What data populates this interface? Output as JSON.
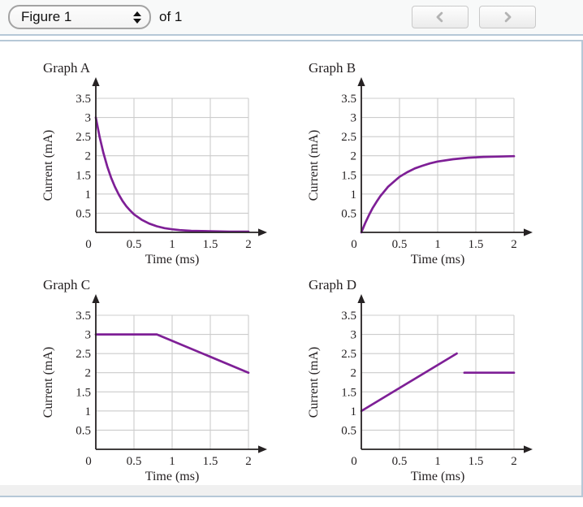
{
  "toolbar": {
    "figure_select": {
      "value": "Figure 1"
    },
    "of_label": "of 1"
  },
  "icons": {
    "figure_selector_stepper": "up-down-stepper",
    "previous_button_icon": "chevron-left",
    "next_button_icon": "chevron-right"
  },
  "colors": {
    "curve": "#7e1f96",
    "grid": "#cccccc",
    "axis": "#262223",
    "text": "#231f20",
    "panel_border": "#b6c8d7",
    "toolbar_bg": "#f8f9f9",
    "footer_strip": "#f0f0f0",
    "nav_chevron": "#b3b3b3"
  },
  "chart_data": [
    {
      "id": "A",
      "type": "line",
      "title": "Graph A",
      "xlabel": "Time (ms)",
      "ylabel": "Current (mA)",
      "xlim": [
        0,
        2
      ],
      "ylim": [
        0,
        3.5
      ],
      "xticks": [
        0.5,
        1,
        1.5,
        2
      ],
      "yticks": [
        0.5,
        1,
        1.5,
        2,
        2.5,
        3,
        3.5
      ],
      "origin_label": "0",
      "grid": true,
      "legend": false,
      "series": [
        {
          "name": "current-decay",
          "points": [
            [
              0,
              3
            ],
            [
              0.05,
              2.49
            ],
            [
              0.1,
              2.07
            ],
            [
              0.15,
              1.72
            ],
            [
              0.2,
              1.43
            ],
            [
              0.25,
              1.19
            ],
            [
              0.3,
              0.99
            ],
            [
              0.35,
              0.82
            ],
            [
              0.4,
              0.68
            ],
            [
              0.45,
              0.57
            ],
            [
              0.5,
              0.47
            ],
            [
              0.6,
              0.33
            ],
            [
              0.7,
              0.23
            ],
            [
              0.8,
              0.16
            ],
            [
              0.9,
              0.11
            ],
            [
              1,
              0.08
            ],
            [
              1.1,
              0.06
            ],
            [
              1.25,
              0.04
            ],
            [
              1.5,
              0.03
            ],
            [
              1.75,
              0.02
            ],
            [
              2,
              0.02
            ]
          ]
        }
      ]
    },
    {
      "id": "B",
      "type": "line",
      "title": "Graph B",
      "xlabel": "Time (ms)",
      "ylabel": "Current (mA)",
      "xlim": [
        0,
        2
      ],
      "ylim": [
        0,
        3.5
      ],
      "xticks": [
        0.5,
        1,
        1.5,
        2
      ],
      "yticks": [
        0.5,
        1,
        1.5,
        2,
        2.5,
        3,
        3.5
      ],
      "origin_label": "0",
      "grid": true,
      "legend": false,
      "series": [
        {
          "name": "current-rise",
          "points": [
            [
              0,
              0
            ],
            [
              0.05,
              0.24
            ],
            [
              0.1,
              0.45
            ],
            [
              0.15,
              0.64
            ],
            [
              0.2,
              0.8
            ],
            [
              0.25,
              0.95
            ],
            [
              0.3,
              1.07
            ],
            [
              0.35,
              1.19
            ],
            [
              0.4,
              1.28
            ],
            [
              0.5,
              1.45
            ],
            [
              0.6,
              1.57
            ],
            [
              0.7,
              1.67
            ],
            [
              0.8,
              1.74
            ],
            [
              0.9,
              1.8
            ],
            [
              1,
              1.85
            ],
            [
              1.2,
              1.91
            ],
            [
              1.4,
              1.95
            ],
            [
              1.6,
              1.97
            ],
            [
              1.8,
              1.98
            ],
            [
              2,
              1.99
            ]
          ]
        }
      ]
    },
    {
      "id": "C",
      "type": "line",
      "title": "Graph C",
      "xlabel": "Time (ms)",
      "ylabel": "Current (mA)",
      "xlim": [
        0,
        2
      ],
      "ylim": [
        0,
        3.5
      ],
      "xticks": [
        0.5,
        1,
        1.5,
        2
      ],
      "yticks": [
        0.5,
        1,
        1.5,
        2,
        2.5,
        3,
        3.5
      ],
      "origin_label": "0",
      "grid": true,
      "legend": false,
      "series": [
        {
          "name": "current-flat-then-decline",
          "points": [
            [
              0,
              3
            ],
            [
              0.8,
              3
            ],
            [
              2,
              2
            ]
          ]
        }
      ]
    },
    {
      "id": "D",
      "type": "line",
      "title": "Graph D",
      "xlabel": "Time (ms)",
      "ylabel": "Current (mA)",
      "xlim": [
        0,
        2
      ],
      "ylim": [
        0,
        3.5
      ],
      "xticks": [
        0.5,
        1,
        1.5,
        2
      ],
      "yticks": [
        0.5,
        1,
        1.5,
        2,
        2.5,
        3,
        3.5
      ],
      "origin_label": "0",
      "grid": true,
      "legend": false,
      "series": [
        {
          "name": "current-ramp",
          "points": [
            [
              0,
              1
            ],
            [
              1.25,
              2.5
            ]
          ]
        },
        {
          "name": "current-step-flat",
          "points": [
            [
              1.35,
              2
            ],
            [
              2,
              2
            ]
          ]
        }
      ]
    }
  ]
}
